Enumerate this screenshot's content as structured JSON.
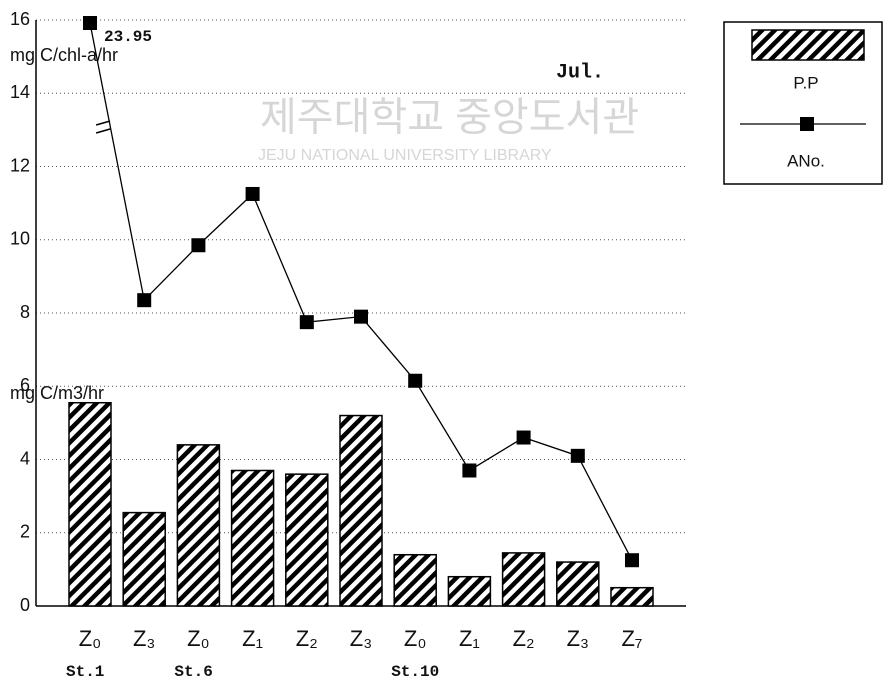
{
  "chart_data": {
    "type": "bar",
    "watermark": [
      "제주대학교 중앙도서관",
      "JEJU NATIONAL UNIVERSITY LIBRARY"
    ],
    "annotation": "Jul.",
    "y_label_upper": "mg C/chl-a/hr",
    "y_label_lower": "mg C/m3/hr",
    "categories": [
      "Z₀",
      "Z₃",
      "Z₀",
      "Z₁",
      "Z₂",
      "Z₃",
      "Z₀",
      "Z₁",
      "Z₂",
      "Z₃",
      "Z₇"
    ],
    "stations": [
      "St.1",
      null,
      "St.6",
      null,
      null,
      null,
      "St.10",
      null,
      null,
      null,
      null
    ],
    "series": [
      {
        "name": "P.P",
        "type": "bar",
        "color": "#000000",
        "values": [
          5.55,
          2.55,
          4.4,
          3.7,
          3.6,
          5.2,
          1.4,
          0.8,
          1.45,
          1.2,
          0.5
        ]
      },
      {
        "name": "ANo.",
        "type": "line",
        "color": "#000000",
        "values": [
          23.95,
          8.35,
          9.85,
          11.25,
          7.75,
          7.9,
          6.15,
          3.7,
          4.6,
          4.1,
          1.25
        ],
        "value_labels": [
          "23.95",
          null,
          null,
          null,
          null,
          null,
          null,
          null,
          null,
          null,
          null
        ]
      }
    ],
    "ylim": [
      0,
      16
    ],
    "yticks": [
      0,
      2,
      4,
      6,
      8,
      10,
      12,
      14,
      16
    ],
    "grid": true
  }
}
